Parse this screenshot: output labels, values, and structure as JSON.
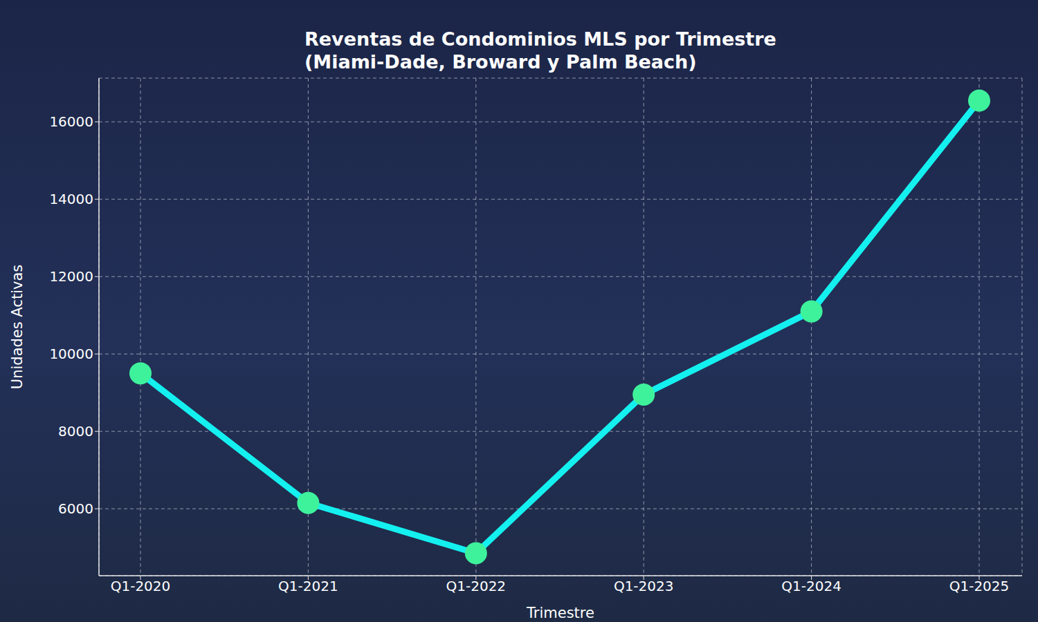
{
  "chart_data": {
    "type": "line",
    "title": "Reventas de Condominios MLS por Trimestre",
    "subtitle": "(Miami-Dade, Broward y Palm Beach)",
    "x_label": "Trimestre",
    "y_label": "Unidades Activas",
    "categories": [
      "Q1-2020",
      "Q1-2021",
      "Q1-2022",
      "Q1-2023",
      "Q1-2024",
      "Q1-2025"
    ],
    "values": [
      9500,
      6150,
      4850,
      8950,
      11100,
      16550
    ],
    "color": "#14f0f0",
    "marker": "circle",
    "line_style": "solid",
    "ylim": [
      4270,
      17130
    ],
    "yticks": [
      6000,
      8000,
      10000,
      12000,
      14000,
      16000
    ],
    "grid": true
  }
}
